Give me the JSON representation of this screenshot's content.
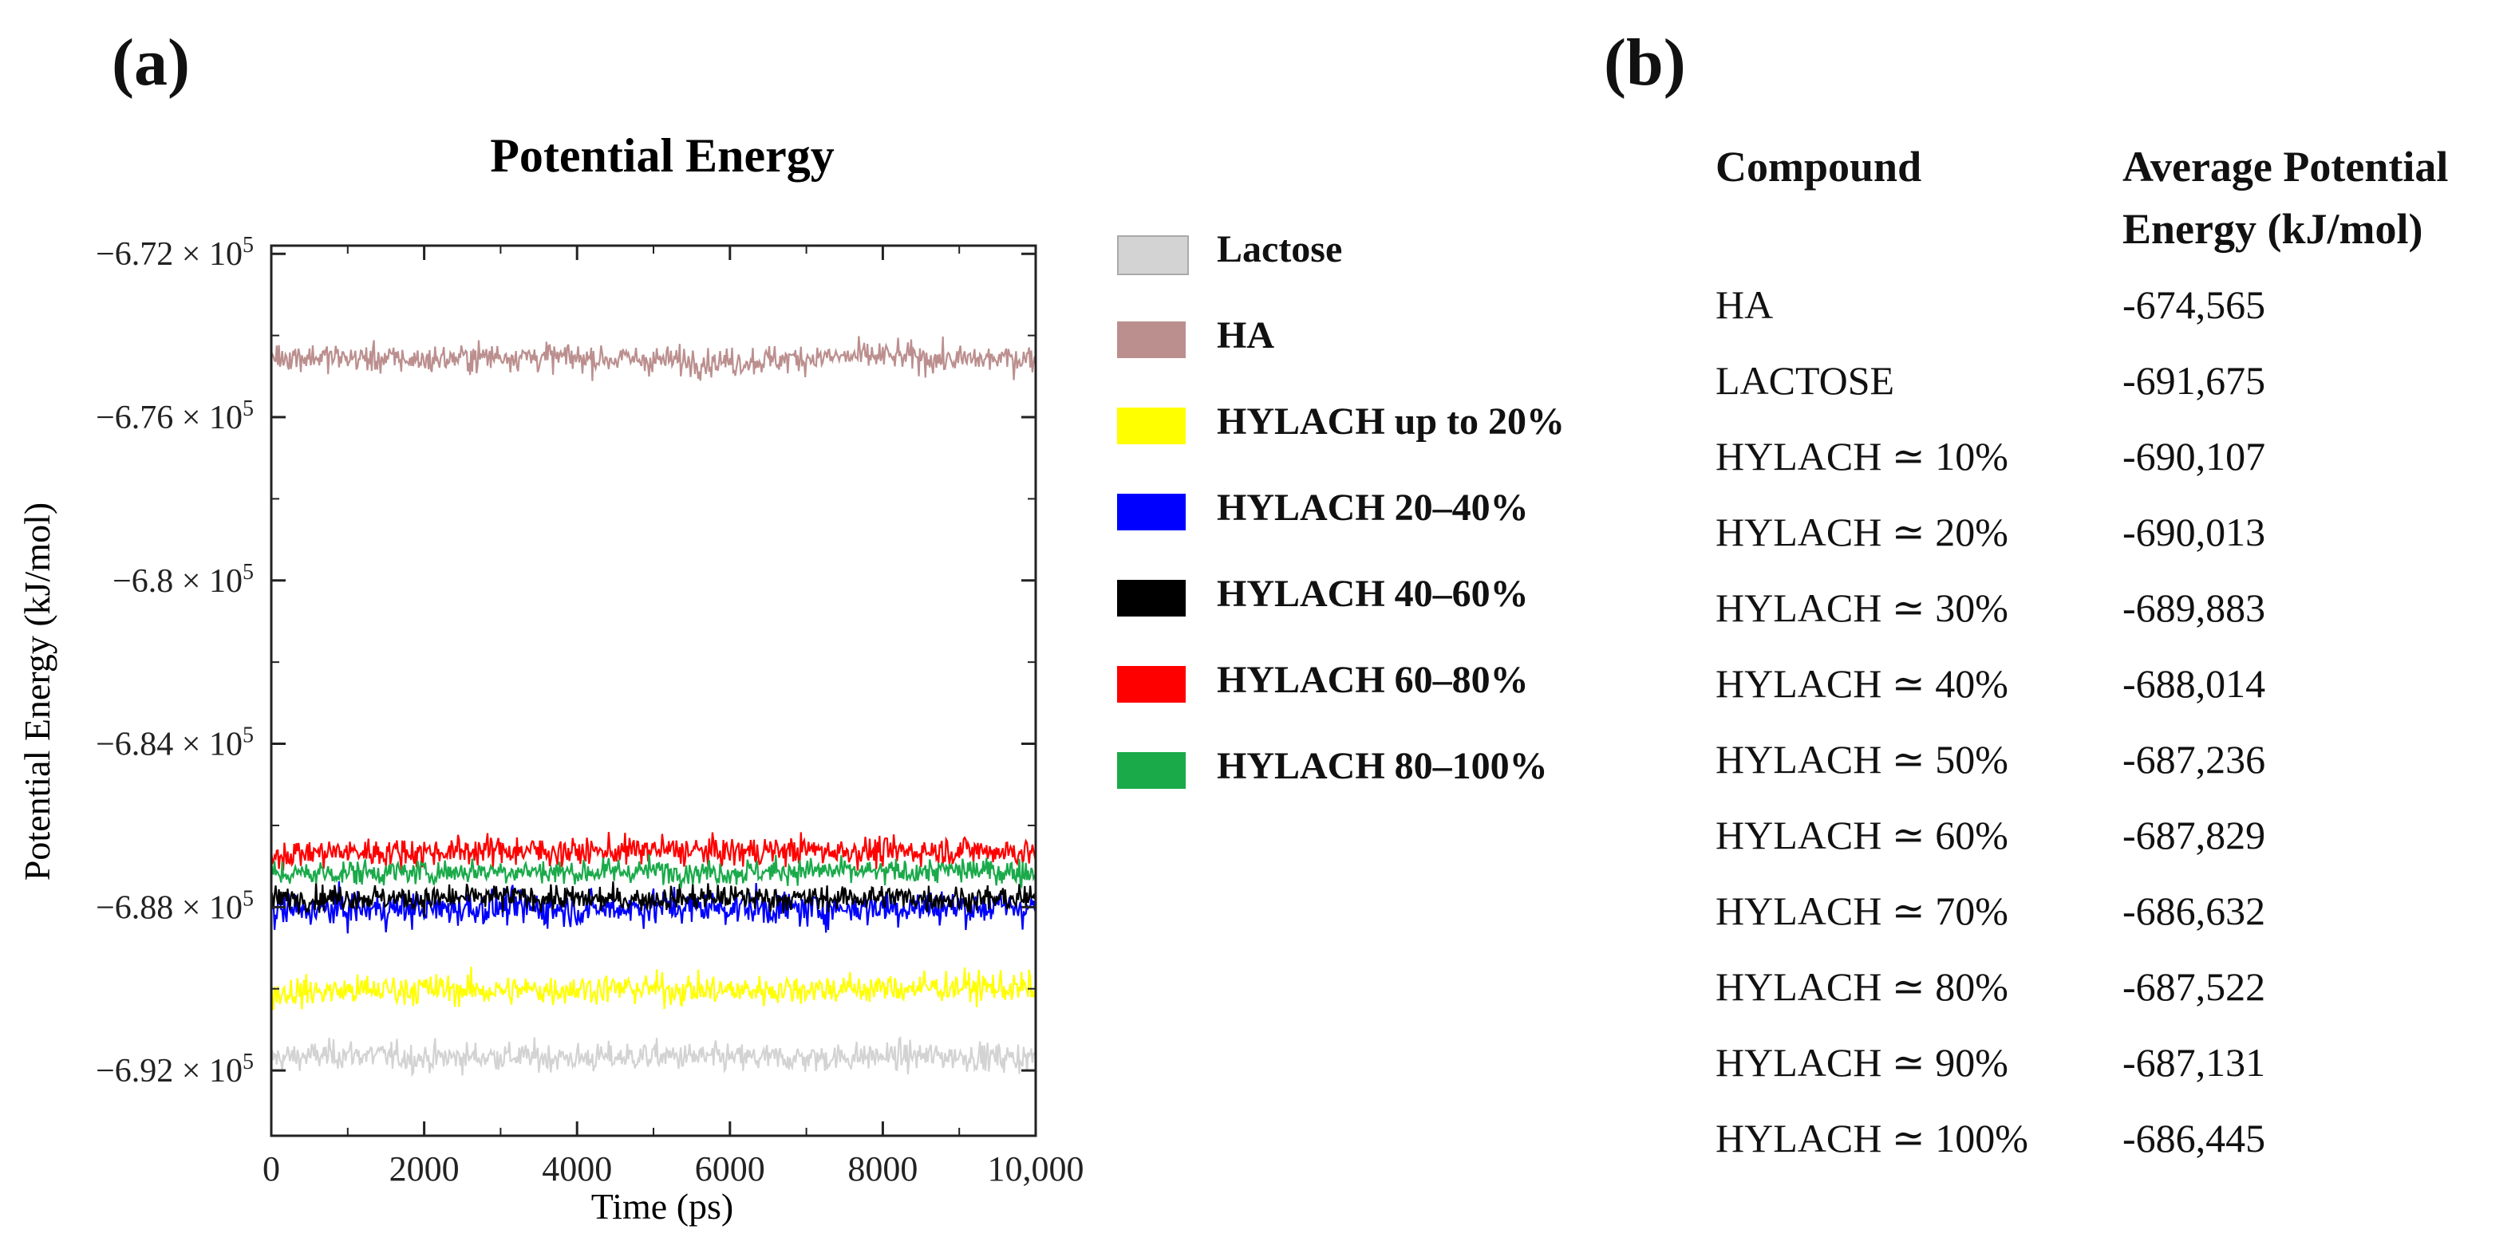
{
  "panels": {
    "a": "(a)",
    "b": "(b)"
  },
  "chart_data": {
    "type": "line",
    "title": "Potential Energy",
    "xlabel": "Time (ps)",
    "ylabel": "Potential Energy (kJ/mol)",
    "xlim": [
      0,
      10000
    ],
    "ylim": [
      -693600,
      -671800
    ],
    "x_ticks": [
      0,
      2000,
      4000,
      6000,
      8000,
      10000
    ],
    "x_tick_labels": [
      "0",
      "2000",
      "4000",
      "6000",
      "8000",
      "10,000"
    ],
    "y_ticks": [
      -672000,
      -676000,
      -680000,
      -684000,
      -688000,
      -692000
    ],
    "y_tick_labels": [
      {
        "mantissa": "−6.72 × 10",
        "exp": "5"
      },
      {
        "mantissa": "−6.76 × 10",
        "exp": "5"
      },
      {
        "mantissa": "−6.8 × 10",
        "exp": "5"
      },
      {
        "mantissa": "−6.84 × 10",
        "exp": "5"
      },
      {
        "mantissa": "−6.88 × 10",
        "exp": "5"
      },
      {
        "mantissa": "−6.92 × 10",
        "exp": "5"
      }
    ],
    "x": [
      0,
      1000,
      2000,
      3000,
      4000,
      5000,
      6000,
      7000,
      8000,
      9000,
      10000
    ],
    "series": [
      {
        "name": "Lactose",
        "color": "#d3d3d3",
        "y": [
          -691700,
          -691600,
          -691700,
          -691650,
          -691700,
          -691650,
          -691700,
          -691700,
          -691650,
          -691650,
          -691700
        ],
        "noise": 450
      },
      {
        "name": "HA",
        "color": "#bc8f8f",
        "y": [
          -674500,
          -674550,
          -674600,
          -674500,
          -674550,
          -674600,
          -674650,
          -674550,
          -674500,
          -674600,
          -674550
        ],
        "noise": 450
      },
      {
        "name": "HYLACH up to 20%",
        "color": "#ffff00",
        "y": [
          -690100,
          -690050,
          -690000,
          -690050,
          -690000,
          -690000,
          -690050,
          -690000,
          -690000,
          -689950,
          -690000
        ],
        "noise": 480
      },
      {
        "name": "HYLACH 20–40%",
        "color": "#0000ff",
        "y": [
          -688100,
          -688050,
          -688050,
          -688000,
          -688050,
          -688000,
          -688000,
          -688050,
          -688000,
          -688000,
          -688000
        ],
        "noise": 550
      },
      {
        "name": "HYLACH 40–60%",
        "color": "#000000",
        "y": [
          -687800,
          -687750,
          -687800,
          -687750,
          -687800,
          -687800,
          -687750,
          -687800,
          -687750,
          -687800,
          -687800
        ],
        "noise": 400
      },
      {
        "name": "HYLACH 60–80%",
        "color": "#ff0000",
        "y": [
          -686700,
          -686650,
          -686650,
          -686600,
          -686650,
          -686600,
          -686650,
          -686600,
          -686650,
          -686600,
          -686650
        ],
        "noise": 450
      },
      {
        "name": "HYLACH 80–100%",
        "color": "#1aaa4a",
        "y": [
          -687200,
          -687150,
          -687150,
          -687100,
          -687150,
          -687100,
          -687150,
          -687100,
          -687150,
          -687100,
          -687150
        ],
        "noise": 400
      }
    ],
    "legend_position": "right"
  },
  "table": {
    "headers": {
      "compound": "Compound",
      "energy_line1": "Average Potential",
      "energy_line2": "Energy (kJ/mol)"
    },
    "rows": [
      {
        "compound": "HA",
        "energy": "-674,565"
      },
      {
        "compound": "LACTOSE",
        "energy": "-691,675"
      },
      {
        "compound": "HYLACH ≃ 10%",
        "energy": "-690,107"
      },
      {
        "compound": "HYLACH ≃ 20%",
        "energy": "-690,013"
      },
      {
        "compound": "HYLACH ≃ 30%",
        "energy": "-689,883"
      },
      {
        "compound": "HYLACH ≃ 40%",
        "energy": "-688,014"
      },
      {
        "compound": "HYLACH ≃ 50%",
        "energy": "-687,236"
      },
      {
        "compound": "HYLACH ≃ 60%",
        "energy": "-687,829"
      },
      {
        "compound": "HYLACH ≃ 70%",
        "energy": "-686,632"
      },
      {
        "compound": "HYLACH ≃ 80%",
        "energy": "-687,522"
      },
      {
        "compound": "HYLACH ≃ 90%",
        "energy": "-687,131"
      },
      {
        "compound": "HYLACH ≃ 100%",
        "energy": "-686,445"
      }
    ]
  }
}
